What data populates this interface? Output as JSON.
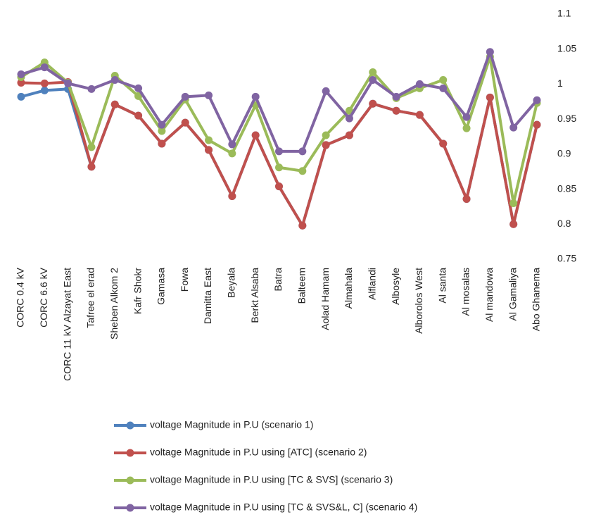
{
  "chart_data": {
    "type": "line",
    "categories": [
      "CORC 0.4 kV",
      "CORC 6.6 kV",
      "CORC 11 kV Alzayat East",
      "Tafree el erad",
      "Sheben Alkom 2",
      "Kafr Shokr",
      "Gamasa",
      "Fowa",
      "Damitta East",
      "Beyala",
      "Berkt Alsaba",
      "Batra",
      "Balteem",
      "Aolad Hamam",
      "Almahala",
      "Alflandi",
      "Albosyle",
      "Alborolos West",
      "Al santa",
      "Al mosalas",
      "Al mandowa",
      "Al Gamaliya",
      "Abo Ghanema"
    ],
    "series": [
      {
        "name": "voltage Magnitude in P.U (scenario 1)",
        "color": "#4f81bd",
        "values": [
          0.982,
          0.991,
          0.993,
          0.882,
          0.971,
          0.955,
          0.915,
          0.945,
          0.906,
          0.84,
          0.927,
          0.854,
          0.798,
          0.913,
          0.927,
          0.972,
          0.962,
          0.956,
          0.915,
          0.836,
          0.981,
          0.8,
          0.942
        ]
      },
      {
        "name": "voltage Magnitude in P.U using [ATC] (scenario 2)",
        "color": "#c0504d",
        "values": [
          1.002,
          1.001,
          1.003,
          0.882,
          0.971,
          0.955,
          0.915,
          0.945,
          0.906,
          0.84,
          0.927,
          0.854,
          0.798,
          0.913,
          0.927,
          0.972,
          0.962,
          0.956,
          0.915,
          0.836,
          0.981,
          0.8,
          0.942
        ]
      },
      {
        "name": "voltage Magnitude in P.U using [TC & SVS] (scenario 3)",
        "color": "#9bbb59",
        "values": [
          1.01,
          1.031,
          1.002,
          0.91,
          1.012,
          0.983,
          0.933,
          0.978,
          0.92,
          0.901,
          0.97,
          0.881,
          0.876,
          0.927,
          0.962,
          1.017,
          0.98,
          0.994,
          1.006,
          0.937,
          1.039,
          0.83,
          0.973
        ]
      },
      {
        "name": "voltage Magnitude in P.U using [TC & SVS&L, C] (scenario 4)",
        "color": "#8064a2",
        "values": [
          1.014,
          1.024,
          1.001,
          0.993,
          1.006,
          0.994,
          0.942,
          0.982,
          0.984,
          0.914,
          0.982,
          0.904,
          0.904,
          0.99,
          0.951,
          1.006,
          0.982,
          1.0,
          0.994,
          0.953,
          1.046,
          0.938,
          0.977
        ]
      }
    ],
    "ylim": [
      0.75,
      1.1
    ],
    "yticks": [
      0.75,
      0.8,
      0.85,
      0.9,
      0.95,
      1,
      1.05,
      1.1
    ],
    "legend": "bottom"
  }
}
